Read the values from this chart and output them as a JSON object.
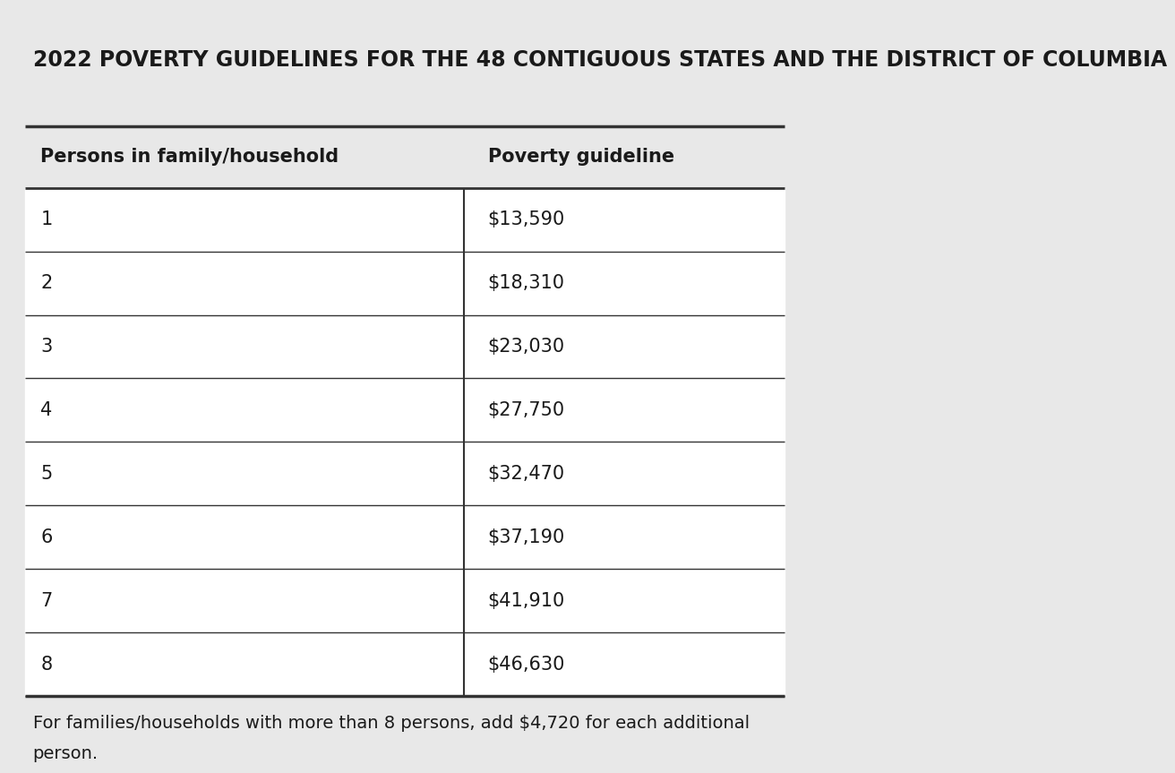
{
  "title": "2022 POVERTY GUIDELINES FOR THE 48 CONTIGUOUS STATES AND THE DISTRICT OF COLUMBIA",
  "col1_header": "Persons in family/household",
  "col2_header": "Poverty guideline",
  "rows": [
    [
      "1",
      "$13,590"
    ],
    [
      "2",
      "$18,310"
    ],
    [
      "3",
      "$23,030"
    ],
    [
      "4",
      "$27,750"
    ],
    [
      "5",
      "$32,470"
    ],
    [
      "6",
      "$37,190"
    ],
    [
      "7",
      "$41,910"
    ],
    [
      "8",
      "$46,630"
    ]
  ],
  "footnote": "For families/households with more than 8 persons, add $4,720 for each additional\nperson.",
  "bg_color": "#e8e8e8",
  "row_bg": "#ffffff",
  "text_color": "#1a1a1a",
  "line_color": "#333333",
  "title_fontsize": 17,
  "header_fontsize": 15,
  "data_fontsize": 15,
  "footnote_fontsize": 14,
  "col_split": 0.575
}
